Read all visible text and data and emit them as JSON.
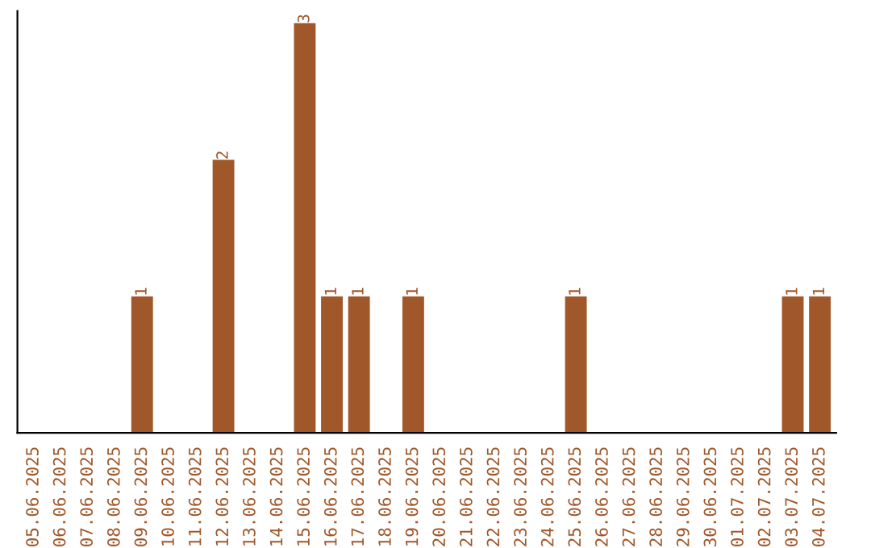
{
  "chart_data": {
    "type": "bar",
    "categories": [
      "05.06.2025",
      "06.06.2025",
      "07.06.2025",
      "08.06.2025",
      "09.06.2025",
      "10.06.2025",
      "11.06.2025",
      "12.06.2025",
      "13.06.2025",
      "14.06.2025",
      "15.06.2025",
      "16.06.2025",
      "17.06.2025",
      "18.06.2025",
      "19.06.2025",
      "20.06.2025",
      "21.06.2025",
      "22.06.2025",
      "23.06.2025",
      "24.06.2025",
      "25.06.2025",
      "26.06.2025",
      "27.06.2025",
      "28.06.2025",
      "29.06.2025",
      "30.06.2025",
      "01.07.2025",
      "02.07.2025",
      "03.07.2025",
      "04.07.2025"
    ],
    "values": [
      0,
      0,
      0,
      0,
      1,
      0,
      0,
      2,
      0,
      0,
      3,
      1,
      1,
      0,
      1,
      0,
      0,
      0,
      0,
      0,
      1,
      0,
      0,
      0,
      0,
      0,
      0,
      0,
      1,
      1
    ],
    "value_labels": [
      null,
      null,
      null,
      null,
      "1",
      null,
      null,
      "2",
      null,
      null,
      "3",
      "1",
      "1",
      null,
      "1",
      null,
      null,
      null,
      null,
      null,
      "1",
      null,
      null,
      null,
      null,
      null,
      null,
      null,
      "1",
      "1"
    ],
    "color": "#a0582a",
    "tick_labels": "x",
    "grid": false,
    "legend": false
  }
}
